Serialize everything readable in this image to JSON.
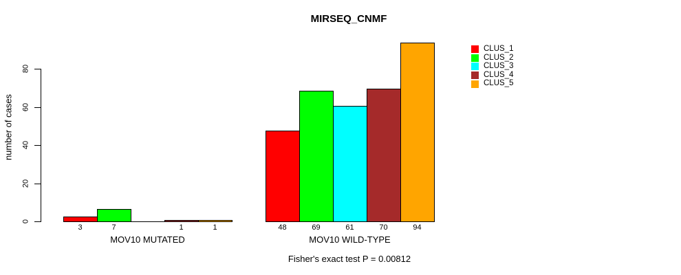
{
  "title": "MIRSEQ_CNMF",
  "y_axis": {
    "label": "number of cases",
    "tick_labels": [
      "0",
      "20",
      "40",
      "60",
      "80"
    ]
  },
  "footer": "Fisher's exact test P = 0.00812",
  "legend": {
    "items": [
      {
        "label": "CLUS_1",
        "color": "#ff0000"
      },
      {
        "label": "CLUS_2",
        "color": "#00ff00"
      },
      {
        "label": "CLUS_3",
        "color": "#00ffff"
      },
      {
        "label": "CLUS_4",
        "color": "#a52a2a"
      },
      {
        "label": "CLUS_5",
        "color": "#ffa500"
      }
    ]
  },
  "chart_data": {
    "type": "bar",
    "title": "MIRSEQ_CNMF",
    "ylabel": "number of cases",
    "categories": [
      "MOV10 MUTATED",
      "MOV10 WILD-TYPE"
    ],
    "series": [
      {
        "name": "CLUS_1",
        "color": "#ff0000",
        "values": [
          3,
          48
        ]
      },
      {
        "name": "CLUS_2",
        "color": "#00ff00",
        "values": [
          7,
          69
        ]
      },
      {
        "name": "CLUS_3",
        "color": "#00ffff",
        "values": [
          0,
          61
        ]
      },
      {
        "name": "CLUS_4",
        "color": "#a52a2a",
        "values": [
          1,
          70
        ]
      },
      {
        "name": "CLUS_5",
        "color": "#ffa500",
        "values": [
          1,
          94
        ]
      }
    ],
    "bar_value_labels": [
      [
        "3",
        "7",
        "",
        "1",
        "1"
      ],
      [
        "48",
        "69",
        "61",
        "70",
        "94"
      ]
    ],
    "yticks": [
      0,
      20,
      40,
      60,
      80
    ],
    "ylim": [
      0,
      95
    ],
    "grid": false,
    "legend_position": "right-outside-top",
    "annotation": "Fisher's exact test P = 0.00812"
  }
}
